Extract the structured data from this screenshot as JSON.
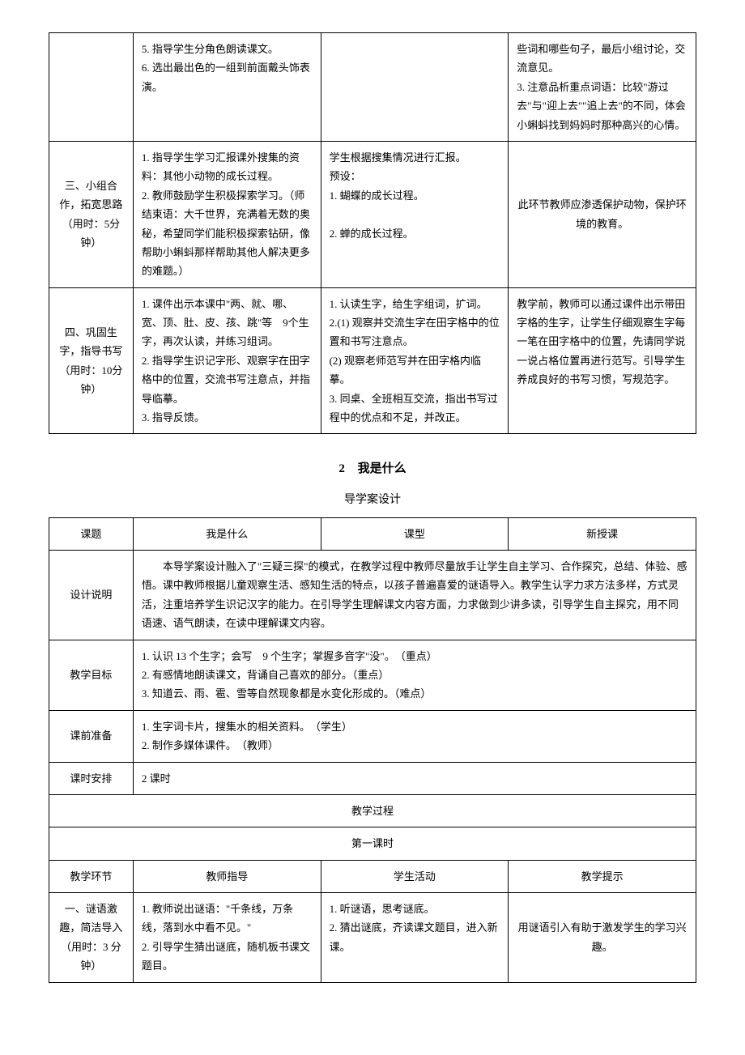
{
  "table1": {
    "row1": {
      "col1": "",
      "col2": "5. 指导学生分角色朗读课文。\n6. 选出最出色的一组到前面戴头饰表演。",
      "col3": "",
      "col4": "些词和哪些句子，最后小组讨论，交流意见。\n3. 注意品析重点词语：比较\"游过去\"与\"迎上去\"\"追上去\"的不同，体会小蝌蚪找到妈妈时那种高兴的心情。"
    },
    "row2": {
      "col1": "三、小组合作，拓宽思路（用时：5分钟）",
      "col2": "1. 指导学生学习汇报课外搜集的资料：其他小动物的成长过程。\n2. 教师鼓励学生积极探索学习。（师结束语：大千世界，充满着无数的奥秘，希望同学们能积极探索钻研，像帮助小蝌蚪那样帮助其他人解决更多的难题。）",
      "col3": "学生根据搜集情况进行汇报。\n预设：\n1. 蝴蝶的成长过程。\n\n2. 蝉的成长过程。",
      "col4": "此环节教师应渗透保护动物，保护环境的教育。"
    },
    "row3": {
      "col1": "四、巩固生字，指导书写（用时：10分钟）",
      "col2": "1. 课件出示本课中\"两、就、哪、宽、顶、肚、皮、孩、跳\"等　9个生字，再次认读，并练习组词。\n2. 指导学生识记字形、观察字在田字格中的位置，交流书写注意点，并指导临摹。\n3. 指导反馈。",
      "col3": "1. 认读生字，给生字组词，扩词。\n2.(1) 观察并交流生字在田字格中的位置和书写注意点。\n(2) 观察老师范写并在田字格内临摹。\n3. 同桌、全班相互交流，指出书写过程中的优点和不足，并改正。",
      "col4": "教学前，教师可以通过课件出示带田字格的生字，让学生仔细观察生字每一笔在田字格中的位置，先请同学说一说占格位置再进行范写。引导学生养成良好的书写习惯，写规范字。"
    }
  },
  "section_title": {
    "number": "2",
    "title": "我是什么",
    "subtitle": "导学案设计"
  },
  "table2": {
    "header": {
      "label1": "课题",
      "value1": "我是什么",
      "label2": "课型",
      "value2": "新授课"
    },
    "design_desc": {
      "label": "设计说明",
      "content": "本导学案设计融入了\"三疑三探\"的模式，在教学过程中教师尽量放手让学生自主学习、合作探究，总结、体验、感悟。课中教师根据儿童观察生活、感知生活的特点，以孩子普遍喜爱的谜语导入。教学生认字力求方法多样，方式灵活，注重培养学生识记汉字的能力。在引导学生理解课文内容方面，力求做到少讲多读，引导学生自主探究，用不同语速、语气朗读，在读中理解课文内容。"
    },
    "goals": {
      "label": "教学目标",
      "content": "1. 认识 13 个生字；会写　9 个生字；掌握多音字\"没\"。　（重点）\n2. 有感情地朗读课文，背诵自己喜欢的部分。（重点）\n3. 知道云、雨、雹、雪等自然现象都是水变化形成的。（难点）"
    },
    "prep": {
      "label": "课前准备",
      "content": "1. 生字词卡片，搜集水的相关资料。　（学生）\n2. 制作多媒体课件。　（教师）"
    },
    "schedule": {
      "label": "课时安排",
      "content": "2 课时"
    },
    "process_header": "教学过程",
    "lesson_header": "第一课时",
    "columns": {
      "c1": "教学环节",
      "c2": "教师指导",
      "c3": "学生活动",
      "c4": "教学提示"
    },
    "row1": {
      "col1": "一、谜语激趣，简洁导入（用时：3 分钟）",
      "col2": "1. 教师说出谜语：\"千条线，万条线，落到水中看不见。\"\n2. 引导学生猜出谜底，随机板书课文题目。",
      "col3": "1. 听谜语，思考谜底。\n2. 猜出谜底，齐读课文题目，进入新课。",
      "col4": "用谜语引入有助于激发学生的学习兴趣。"
    }
  }
}
